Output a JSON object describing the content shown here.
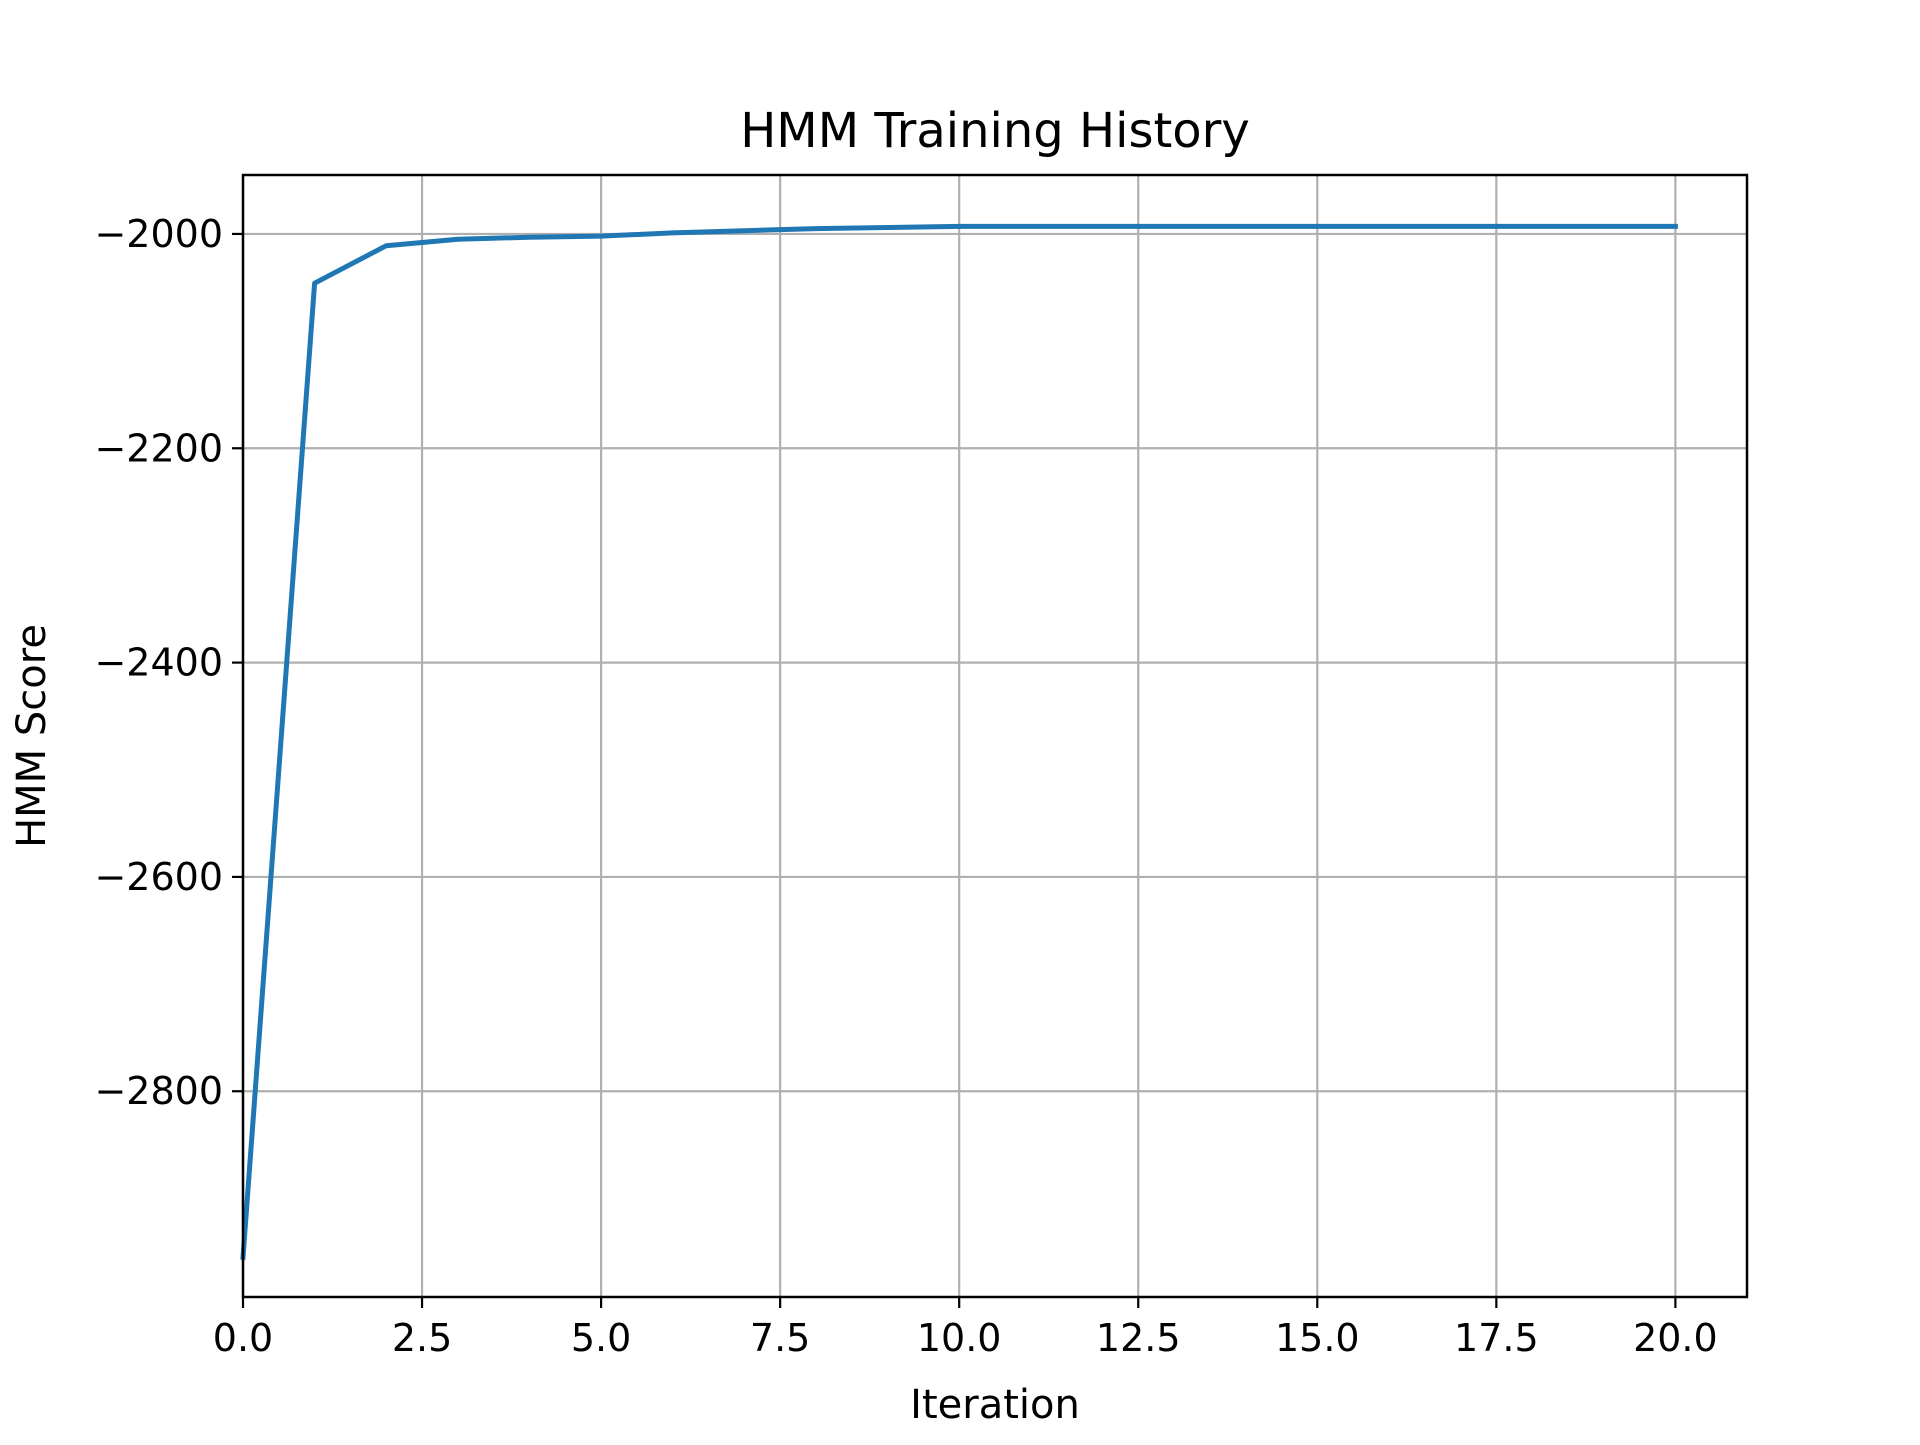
{
  "chart_data": {
    "type": "line",
    "title": "HMM Training History",
    "xlabel": "Iteration",
    "ylabel": "HMM Score",
    "xlim": [
      0,
      21
    ],
    "ylim": [
      -2992,
      -1945
    ],
    "grid": true,
    "x_ticks": [
      0.0,
      2.5,
      5.0,
      7.5,
      10.0,
      12.5,
      15.0,
      17.5,
      20.0
    ],
    "x_tick_labels": [
      "0.0",
      "2.5",
      "5.0",
      "7.5",
      "10.0",
      "12.5",
      "15.0",
      "17.5",
      "20.0"
    ],
    "y_ticks": [
      -2000,
      -2200,
      -2400,
      -2600,
      -2800
    ],
    "y_tick_labels": [
      "−2000",
      "−2200",
      "−2400",
      "−2600",
      "−2800"
    ],
    "series": [
      {
        "color": "#1f77b4",
        "x": [
          0,
          1,
          2,
          3,
          4,
          5,
          6,
          7,
          8,
          9,
          10,
          11,
          12,
          13,
          14,
          15,
          16,
          17,
          18,
          19,
          20
        ],
        "y": [
          -2955,
          -2046,
          -2011,
          -2005,
          -2003,
          -2002,
          -1999,
          -1997,
          -1995,
          -1994,
          -1993,
          -1993,
          -1993,
          -1993,
          -1993,
          -1993,
          -1993,
          -1993,
          -1993,
          -1993,
          -1993
        ]
      }
    ]
  }
}
